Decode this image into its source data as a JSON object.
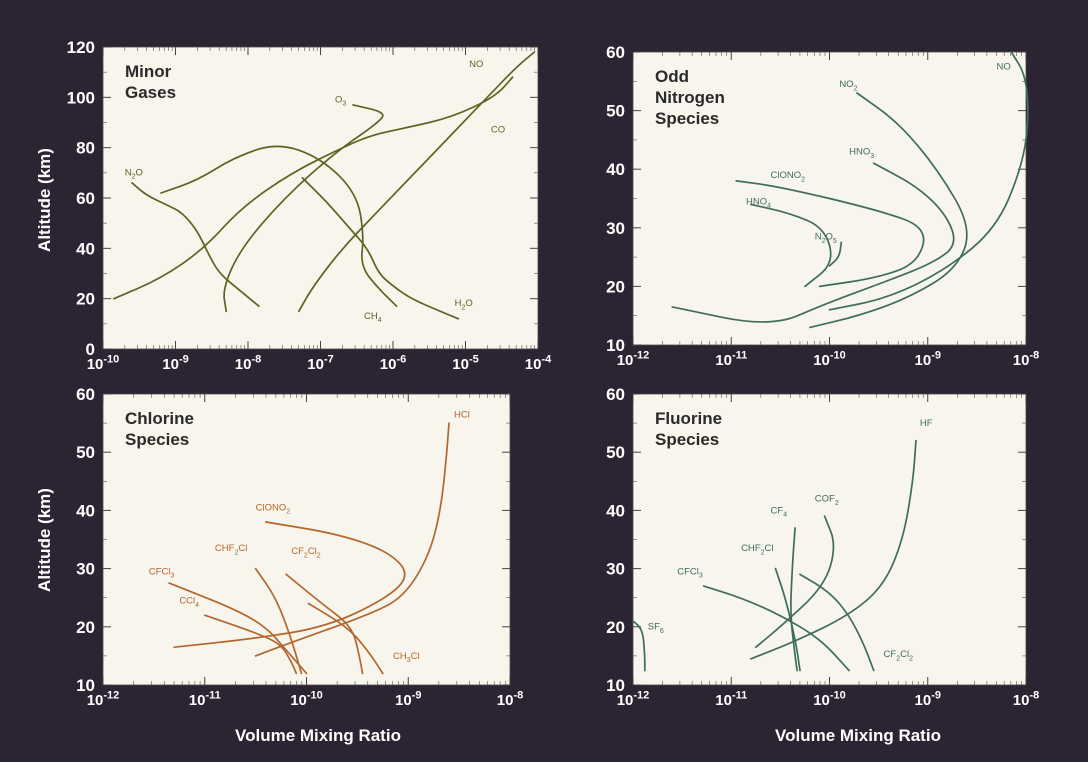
{
  "figure": {
    "y_axis_label": "Altitude (km)",
    "x_axis_label": "Volume Mixing Ratio"
  },
  "chart_data": [
    {
      "type": "line",
      "id": "minor",
      "title": [
        "Minor",
        "Gases"
      ],
      "xlabel": "",
      "ylabel": "Altitude (km)",
      "xscale": "log",
      "xlim": [
        1e-10,
        0.0001
      ],
      "ylim": [
        0,
        120
      ],
      "xticks": [
        {
          "v": -10,
          "t": "10-10"
        },
        {
          "v": -9,
          "t": "10-9"
        },
        {
          "v": -8,
          "t": "10-8"
        },
        {
          "v": -7,
          "t": "10-7"
        },
        {
          "v": -6,
          "t": "10-6"
        },
        {
          "v": -5,
          "t": "10-5"
        },
        {
          "v": -4,
          "t": "10-4"
        }
      ],
      "yticks": [
        0,
        20,
        40,
        60,
        80,
        100,
        120
      ],
      "color": "#5c6422",
      "series": [
        {
          "name": "NO",
          "label_at": [
            -4.95,
            112
          ],
          "points": [
            [
              -7.3,
              15
            ],
            [
              -7.1,
              25
            ],
            [
              -6.7,
              40
            ],
            [
              -6.2,
              55
            ],
            [
              -5.7,
              70
            ],
            [
              -5.2,
              85
            ],
            [
              -4.7,
              100
            ],
            [
              -4.3,
              112
            ],
            [
              -4.05,
              118
            ]
          ]
        },
        {
          "name": "N2O",
          "label_at": [
            -9.7,
            69
          ],
          "points": [
            [
              -9.6,
              66
            ],
            [
              -9.4,
              61
            ],
            [
              -9.1,
              57
            ],
            [
              -8.9,
              54
            ],
            [
              -8.7,
              47
            ],
            [
              -8.55,
              38
            ],
            [
              -8.4,
              30
            ],
            [
              -8.1,
              23
            ],
            [
              -7.85,
              17
            ]
          ]
        },
        {
          "name": "O3",
          "label_at": [
            -6.8,
            98
          ],
          "points": [
            [
              -8.3,
              15
            ],
            [
              -8.35,
              24
            ],
            [
              -8.1,
              40
            ],
            [
              -7.5,
              60
            ],
            [
              -6.8,
              78
            ],
            [
              -6.2,
              90
            ],
            [
              -6.1,
              94
            ],
            [
              -6.55,
              97
            ]
          ]
        },
        {
          "name": "CO",
          "label_at": [
            -4.65,
            86
          ],
          "points": [
            [
              -9.85,
              20
            ],
            [
              -9.2,
              28
            ],
            [
              -8.6,
              40
            ],
            [
              -8.1,
              56
            ],
            [
              -7.4,
              70
            ],
            [
              -6.7,
              80
            ],
            [
              -6.3,
              85
            ],
            [
              -5.8,
              88
            ],
            [
              -5.2,
              92
            ],
            [
              -4.6,
              100
            ],
            [
              -4.35,
              108
            ]
          ]
        },
        {
          "name": "CH4",
          "label_at": [
            -6.4,
            12
          ],
          "points": [
            [
              -9.2,
              62
            ],
            [
              -8.7,
              67
            ],
            [
              -8.2,
              76
            ],
            [
              -7.6,
              82
            ],
            [
              -7.0,
              76
            ],
            [
              -6.5,
              62
            ],
            [
              -6.4,
              45
            ],
            [
              -6.45,
              33
            ],
            [
              -6.2,
              24
            ],
            [
              -5.95,
              17
            ]
          ]
        },
        {
          "name": "H2O",
          "label_at": [
            -5.15,
            17
          ],
          "points": [
            [
              -7.25,
              68
            ],
            [
              -6.9,
              58
            ],
            [
              -6.6,
              48
            ],
            [
              -6.35,
              40
            ],
            [
              -6.2,
              30
            ],
            [
              -6.0,
              25
            ],
            [
              -5.75,
              20
            ],
            [
              -5.35,
              15
            ],
            [
              -5.1,
              12
            ]
          ]
        }
      ]
    },
    {
      "type": "line",
      "id": "nitrogen",
      "title": [
        "Odd",
        "Nitrogen",
        "Species"
      ],
      "xlabel": "",
      "ylabel": "",
      "xscale": "log",
      "xlim": [
        1e-12,
        1e-08
      ],
      "ylim": [
        10,
        60
      ],
      "xticks": [
        {
          "v": -12,
          "t": "10-12"
        },
        {
          "v": -11,
          "t": "10-11"
        },
        {
          "v": -10,
          "t": "10-10"
        },
        {
          "v": -9,
          "t": "10-9"
        },
        {
          "v": -8,
          "t": "10-8"
        }
      ],
      "yticks": [
        10,
        20,
        30,
        40,
        50,
        60
      ],
      "color": "#3e6e58",
      "series": [
        {
          "name": "NO",
          "label_at": [
            -8.3,
            57
          ],
          "points": [
            [
              -8.15,
              60
            ],
            [
              -8.0,
              56
            ],
            [
              -7.97,
              48
            ],
            [
              -8.05,
              40
            ],
            [
              -8.3,
              30
            ],
            [
              -8.8,
              23
            ],
            [
              -9.4,
              18
            ],
            [
              -10.0,
              16
            ]
          ]
        },
        {
          "name": "NO2",
          "label_at": [
            -9.9,
            54
          ],
          "points": [
            [
              -9.72,
              53
            ],
            [
              -9.3,
              48
            ],
            [
              -8.9,
              40
            ],
            [
              -8.55,
              30
            ],
            [
              -8.7,
              23
            ],
            [
              -9.2,
              18
            ],
            [
              -9.7,
              15
            ],
            [
              -10.2,
              13
            ]
          ]
        },
        {
          "name": "HNO3",
          "label_at": [
            -9.8,
            42.5
          ],
          "points": [
            [
              -9.55,
              41
            ],
            [
              -9.1,
              37
            ],
            [
              -8.8,
              32
            ],
            [
              -8.7,
              27
            ],
            [
              -8.95,
              24
            ],
            [
              -9.4,
              21
            ],
            [
              -10.05,
              17
            ],
            [
              -10.6,
              13
            ],
            [
              -11.6,
              16.5
            ]
          ]
        },
        {
          "name": "ClONO2",
          "label_at": [
            -10.6,
            38.5
          ],
          "points": [
            [
              -10.95,
              38
            ],
            [
              -10.5,
              37
            ],
            [
              -9.5,
              33
            ],
            [
              -9.0,
              30
            ],
            [
              -9.1,
              24
            ],
            [
              -9.5,
              21.5
            ],
            [
              -10.1,
              20
            ]
          ]
        },
        {
          "name": "HNO4",
          "label_at": [
            -10.85,
            34
          ],
          "points": [
            [
              -10.8,
              34
            ],
            [
              -10.4,
              32.5
            ],
            [
              -10.05,
              30
            ],
            [
              -9.95,
              24
            ],
            [
              -10.25,
              20
            ]
          ]
        },
        {
          "name": "N2O5",
          "label_at": [
            -10.15,
            28
          ],
          "points": [
            [
              -9.88,
              27.5
            ],
            [
              -9.9,
              25
            ],
            [
              -10.0,
              23.5
            ]
          ]
        }
      ]
    },
    {
      "type": "line",
      "id": "chlorine",
      "title": [
        "Chlorine",
        "Species"
      ],
      "xlabel": "Volume Mixing Ratio",
      "ylabel": "Altitude (km)",
      "xscale": "log",
      "xlim": [
        1e-12,
        1e-08
      ],
      "ylim": [
        10,
        60
      ],
      "xticks": [
        {
          "v": -12,
          "t": "10-12"
        },
        {
          "v": -11,
          "t": "10-11"
        },
        {
          "v": -10,
          "t": "10-10"
        },
        {
          "v": -9,
          "t": "10-9"
        },
        {
          "v": -8,
          "t": "10-8"
        }
      ],
      "yticks": [
        10,
        20,
        30,
        40,
        50,
        60
      ],
      "color": "#b4662e",
      "series": [
        {
          "name": "HCl",
          "label_at": [
            -8.55,
            56
          ],
          "points": [
            [
              -8.6,
              55
            ],
            [
              -8.62,
              50
            ],
            [
              -8.68,
              40
            ],
            [
              -8.8,
              32
            ],
            [
              -9.05,
              25
            ],
            [
              -9.4,
              22
            ],
            [
              -10.2,
              17
            ],
            [
              -10.5,
              15
            ]
          ]
        },
        {
          "name": "ClONO2",
          "label_at": [
            -10.5,
            40
          ],
          "points": [
            [
              -10.4,
              38
            ],
            [
              -9.7,
              36
            ],
            [
              -9.2,
              33
            ],
            [
              -8.98,
              29
            ],
            [
              -9.2,
              25
            ],
            [
              -9.8,
              20
            ],
            [
              -10.5,
              18
            ],
            [
              -11.3,
              16.5
            ]
          ]
        },
        {
          "name": "CHF2Cl",
          "label_at": [
            -10.9,
            33
          ],
          "points": [
            [
              -10.5,
              30
            ],
            [
              -10.3,
              25
            ],
            [
              -10.15,
              18
            ],
            [
              -10.05,
              12
            ]
          ]
        },
        {
          "name": "CF2Cl2",
          "label_at": [
            -10.15,
            32.5
          ],
          "points": [
            [
              -10.2,
              29
            ],
            [
              -9.85,
              24
            ],
            [
              -9.55,
              20
            ],
            [
              -9.48,
              15
            ],
            [
              -9.45,
              12
            ]
          ]
        },
        {
          "name": "CFCl3",
          "label_at": [
            -11.55,
            29
          ],
          "points": [
            [
              -11.35,
              27.5
            ],
            [
              -10.7,
              23
            ],
            [
              -10.4,
              20
            ],
            [
              -10.2,
              16
            ],
            [
              -10.0,
              12
            ]
          ]
        },
        {
          "name": "CCl4",
          "label_at": [
            -11.25,
            24
          ],
          "points": [
            [
              -11.0,
              22
            ],
            [
              -10.5,
              19
            ],
            [
              -10.25,
              17
            ],
            [
              -10.15,
              14
            ],
            [
              -10.1,
              12
            ]
          ]
        },
        {
          "name": "CH3Cl",
          "label_at": [
            -9.15,
            14.5
          ],
          "points": [
            [
              -9.98,
              24
            ],
            [
              -9.6,
              20
            ],
            [
              -9.4,
              16
            ],
            [
              -9.25,
              12
            ]
          ]
        }
      ]
    },
    {
      "type": "line",
      "id": "fluorine",
      "title": [
        "Fluorine",
        "Species"
      ],
      "xlabel": "Volume Mixing Ratio",
      "ylabel": "",
      "xscale": "log",
      "xlim": [
        1e-12,
        1e-08
      ],
      "ylim": [
        10,
        60
      ],
      "xticks": [
        {
          "v": -12,
          "t": "10-12"
        },
        {
          "v": -11,
          "t": "10-11"
        },
        {
          "v": -10,
          "t": "10-10"
        },
        {
          "v": -9,
          "t": "10-9"
        },
        {
          "v": -8,
          "t": "10-8"
        }
      ],
      "yticks": [
        10,
        20,
        30,
        40,
        50,
        60
      ],
      "color": "#3e6e58",
      "series": [
        {
          "name": "HF",
          "label_at": [
            -9.08,
            54.5
          ],
          "points": [
            [
              -9.12,
              52
            ],
            [
              -9.15,
              45
            ],
            [
              -9.25,
              35
            ],
            [
              -9.45,
              27
            ],
            [
              -9.8,
              22
            ],
            [
              -10.35,
              17.5
            ],
            [
              -10.8,
              14.5
            ]
          ]
        },
        {
          "name": "COF2",
          "label_at": [
            -10.15,
            41.5
          ],
          "points": [
            [
              -10.05,
              39
            ],
            [
              -9.93,
              34
            ],
            [
              -10.05,
              27
            ],
            [
              -10.5,
              20
            ],
            [
              -10.75,
              16.5
            ]
          ]
        },
        {
          "name": "CF4",
          "label_at": [
            -10.6,
            39.5
          ],
          "points": [
            [
              -10.35,
              37
            ],
            [
              -10.38,
              30
            ],
            [
              -10.4,
              22
            ],
            [
              -10.35,
              15
            ],
            [
              -10.33,
              12.5
            ]
          ]
        },
        {
          "name": "CHF2Cl",
          "label_at": [
            -10.9,
            33
          ],
          "points": [
            [
              -10.55,
              30
            ],
            [
              -10.45,
              25
            ],
            [
              -10.35,
              18
            ],
            [
              -10.3,
              12.5
            ]
          ]
        },
        {
          "name": "CFCl3",
          "label_at": [
            -11.55,
            29
          ],
          "points": [
            [
              -11.28,
              27
            ],
            [
              -10.9,
              25
            ],
            [
              -10.5,
              22
            ],
            [
              -10.1,
              18
            ],
            [
              -9.8,
              12.5
            ]
          ]
        },
        {
          "name": "CF2Cl2",
          "label_at": [
            -9.45,
            14.8
          ],
          "points": [
            [
              -10.3,
              29
            ],
            [
              -10.0,
              26
            ],
            [
              -9.8,
              22
            ],
            [
              -9.65,
              17
            ],
            [
              -9.55,
              12.5
            ]
          ]
        },
        {
          "name": "SF6",
          "label_at": [
            -11.85,
            19.5
          ],
          "points": [
            [
              -12.0,
              21
            ],
            [
              -11.9,
              19.5
            ],
            [
              -11.88,
              15
            ],
            [
              -11.88,
              12.5
            ]
          ]
        }
      ]
    }
  ]
}
